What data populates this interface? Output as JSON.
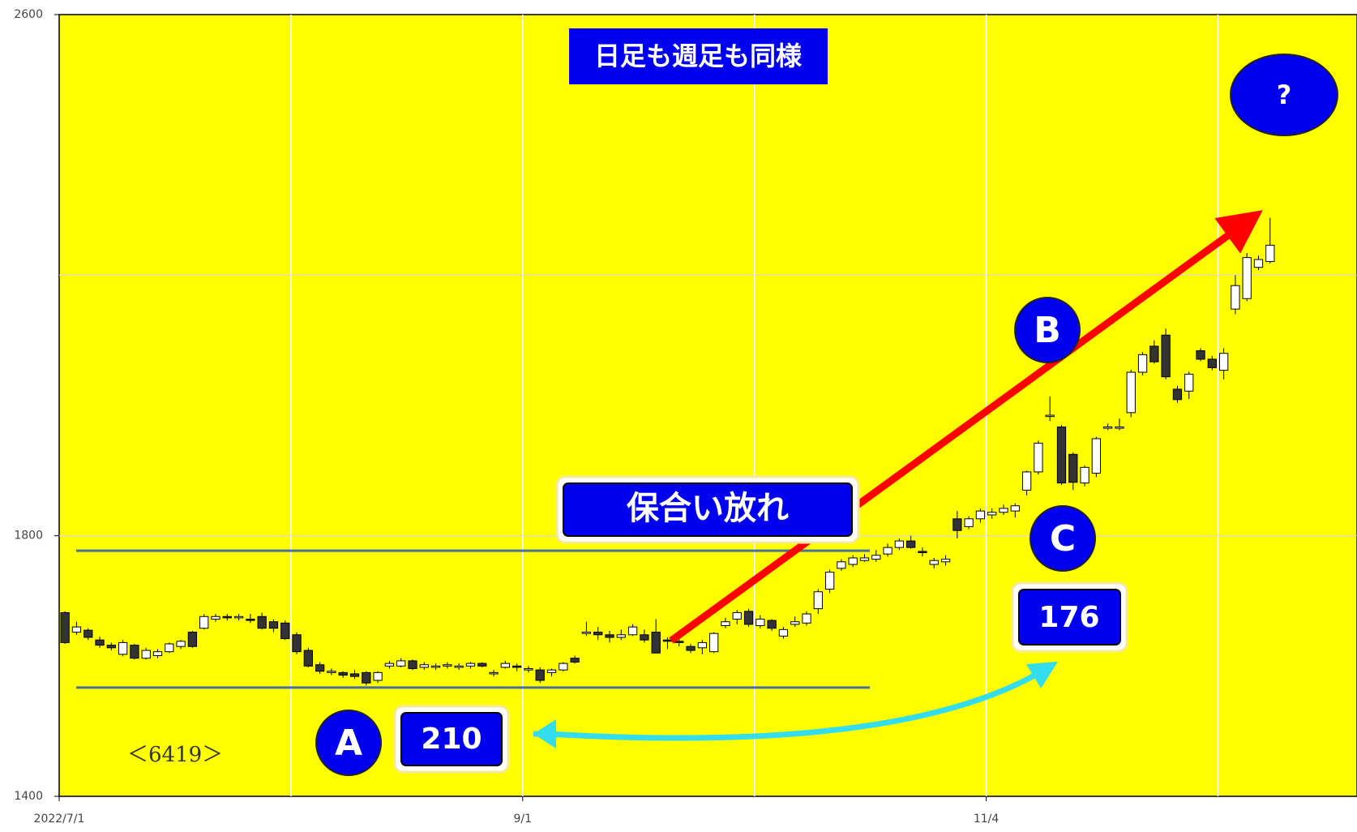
{
  "chart_data": {
    "type": "candlestick",
    "xlim": [
      0,
      112
    ],
    "xticks": [
      {
        "value": 0,
        "label": "2022/7/1"
      },
      {
        "value": 40,
        "label": "9/1"
      },
      {
        "value": 80,
        "label": "11/4"
      }
    ],
    "xgrid": [
      20,
      40,
      60,
      80,
      100
    ],
    "ylim": [
      1400,
      2600
    ],
    "yticks": [
      1400,
      1800,
      2600
    ],
    "ygrid": [
      1800,
      2200
    ],
    "up_color": "#ffffff",
    "down_color": "#333333",
    "range_lines": [
      1777,
      1567
    ],
    "candles": [
      [
        1682,
        1684,
        1634,
        1636
      ],
      [
        1652,
        1668,
        1648,
        1660
      ],
      [
        1655,
        1658,
        1640,
        1644
      ],
      [
        1640,
        1645,
        1628,
        1632
      ],
      [
        1632,
        1636,
        1624,
        1628
      ],
      [
        1618,
        1640,
        1615,
        1636
      ],
      [
        1632,
        1634,
        1610,
        1612
      ],
      [
        1612,
        1628,
        1610,
        1624
      ],
      [
        1616,
        1626,
        1612,
        1622
      ],
      [
        1622,
        1636,
        1620,
        1634
      ],
      [
        1630,
        1640,
        1626,
        1638
      ],
      [
        1652,
        1654,
        1628,
        1630
      ],
      [
        1658,
        1680,
        1656,
        1676
      ],
      [
        1672,
        1680,
        1668,
        1676
      ],
      [
        1676,
        1680,
        1670,
        1674
      ],
      [
        1674,
        1680,
        1670,
        1676
      ],
      [
        1672,
        1680,
        1666,
        1670
      ],
      [
        1676,
        1682,
        1656,
        1658
      ],
      [
        1668,
        1672,
        1652,
        1658
      ],
      [
        1666,
        1670,
        1640,
        1642
      ],
      [
        1648,
        1652,
        1618,
        1622
      ],
      [
        1624,
        1628,
        1598,
        1600
      ],
      [
        1602,
        1606,
        1588,
        1592
      ],
      [
        1590,
        1596,
        1586,
        1592
      ],
      [
        1590,
        1592,
        1582,
        1586
      ],
      [
        1588,
        1594,
        1580,
        1584
      ],
      [
        1590,
        1592,
        1570,
        1574
      ],
      [
        1578,
        1592,
        1574,
        1590
      ],
      [
        1600,
        1608,
        1596,
        1604
      ],
      [
        1600,
        1612,
        1598,
        1608
      ],
      [
        1608,
        1610,
        1594,
        1596
      ],
      [
        1598,
        1606,
        1594,
        1602
      ],
      [
        1598,
        1604,
        1594,
        1600
      ],
      [
        1600,
        1606,
        1596,
        1602
      ],
      [
        1598,
        1604,
        1594,
        1600
      ],
      [
        1600,
        1606,
        1596,
        1604
      ],
      [
        1604,
        1606,
        1598,
        1600
      ],
      [
        1588,
        1594,
        1584,
        1590
      ],
      [
        1598,
        1608,
        1596,
        1604
      ],
      [
        1600,
        1604,
        1592,
        1598
      ],
      [
        1594,
        1600,
        1590,
        1596
      ],
      [
        1594,
        1598,
        1574,
        1578
      ],
      [
        1590,
        1596,
        1584,
        1594
      ],
      [
        1594,
        1606,
        1592,
        1604
      ],
      [
        1612,
        1616,
        1604,
        1606
      ],
      [
        1650,
        1668,
        1646,
        1652
      ],
      [
        1652,
        1660,
        1640,
        1648
      ],
      [
        1648,
        1654,
        1636,
        1644
      ],
      [
        1644,
        1656,
        1640,
        1648
      ],
      [
        1648,
        1664,
        1646,
        1660
      ],
      [
        1648,
        1656,
        1636,
        1640
      ],
      [
        1652,
        1672,
        1620,
        1620
      ],
      [
        1640,
        1644,
        1626,
        1638
      ],
      [
        1638,
        1642,
        1630,
        1636
      ],
      [
        1630,
        1634,
        1620,
        1624
      ],
      [
        1628,
        1640,
        1618,
        1636
      ],
      [
        1622,
        1652,
        1620,
        1650
      ],
      [
        1662,
        1674,
        1658,
        1668
      ],
      [
        1672,
        1686,
        1664,
        1682
      ],
      [
        1684,
        1688,
        1660,
        1664
      ],
      [
        1662,
        1678,
        1658,
        1672
      ],
      [
        1670,
        1672,
        1654,
        1658
      ],
      [
        1646,
        1660,
        1642,
        1656
      ],
      [
        1664,
        1676,
        1660,
        1668
      ],
      [
        1666,
        1684,
        1662,
        1680
      ],
      [
        1688,
        1718,
        1680,
        1714
      ],
      [
        1718,
        1748,
        1712,
        1744
      ],
      [
        1750,
        1764,
        1746,
        1760
      ],
      [
        1756,
        1770,
        1752,
        1766
      ],
      [
        1762,
        1772,
        1760,
        1766
      ],
      [
        1764,
        1778,
        1760,
        1770
      ],
      [
        1772,
        1788,
        1768,
        1782
      ],
      [
        1782,
        1796,
        1778,
        1792
      ],
      [
        1792,
        1800,
        1780,
        1782
      ],
      [
        1776,
        1782,
        1768,
        1774
      ],
      [
        1756,
        1766,
        1750,
        1762
      ],
      [
        1760,
        1770,
        1754,
        1764
      ],
      [
        1826,
        1838,
        1796,
        1808
      ],
      [
        1814,
        1830,
        1810,
        1826
      ],
      [
        1826,
        1842,
        1820,
        1838
      ],
      [
        1832,
        1842,
        1826,
        1836
      ],
      [
        1836,
        1848,
        1832,
        1842
      ],
      [
        1838,
        1850,
        1828,
        1846
      ],
      [
        1870,
        1900,
        1862,
        1898
      ],
      [
        1898,
        1946,
        1894,
        1942
      ],
      [
        1983,
        2014,
        1976,
        1985
      ],
      [
        1967,
        1970,
        1878,
        1881
      ],
      [
        1925,
        1928,
        1870,
        1882
      ],
      [
        1881,
        1908,
        1876,
        1905
      ],
      [
        1896,
        1952,
        1890,
        1949
      ],
      [
        1965,
        1972,
        1962,
        1967
      ],
      [
        1965,
        1980,
        1962,
        1967
      ],
      [
        1989,
        2055,
        1982,
        2051
      ],
      [
        2051,
        2082,
        2046,
        2078
      ],
      [
        2091,
        2100,
        2064,
        2067
      ],
      [
        2108,
        2118,
        2040,
        2044
      ],
      [
        2025,
        2030,
        2004,
        2009
      ],
      [
        2022,
        2052,
        2010,
        2048
      ],
      [
        2084,
        2088,
        2068,
        2071
      ],
      [
        2071,
        2076,
        2054,
        2058
      ],
      [
        2054,
        2088,
        2040,
        2080
      ],
      [
        2148,
        2200,
        2140,
        2184
      ],
      [
        2164,
        2234,
        2160,
        2227
      ],
      [
        2212,
        2230,
        2208,
        2224
      ],
      [
        2221,
        2288,
        2218,
        2246
      ]
    ],
    "annotations": {
      "title": "日足も週足も同様",
      "question": "?",
      "b": "B",
      "breakout": "保合い放れ",
      "c": "C",
      "c_value": "176",
      "a": "A",
      "a_value": "210",
      "code": "＜6419＞"
    }
  }
}
